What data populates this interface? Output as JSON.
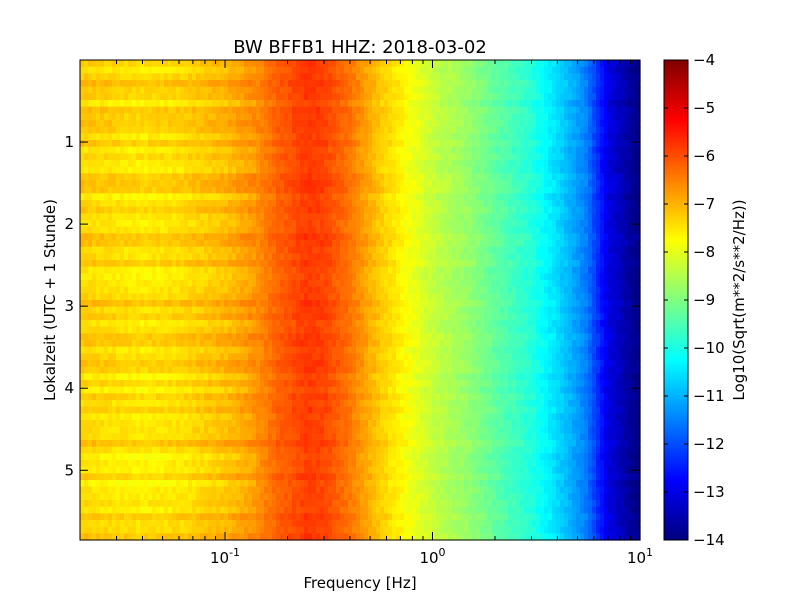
{
  "chart_data": {
    "type": "heatmap",
    "title": "BW BFFB1 HHZ: 2018-03-02",
    "xlabel": "Frequency [Hz]",
    "ylabel": "Lokalzeit (UTC + 1 Stunde)",
    "x_scale": "log",
    "xlim": [
      0.02,
      10
    ],
    "x_ticks": [
      {
        "value": 0.1,
        "base": "10",
        "exp": "-1"
      },
      {
        "value": 1,
        "base": "10",
        "exp": "0"
      },
      {
        "value": 10,
        "base": "10",
        "exp": "1"
      }
    ],
    "ylim": [
      0,
      5.85
    ],
    "y_inverted": true,
    "y_ticks": [
      1,
      2,
      3,
      4,
      5
    ],
    "y_tick_labels": [
      "1",
      "2",
      "3",
      "4",
      "5"
    ],
    "colorbar": {
      "label": "Log10(Sqrt(m**2/s**2/Hz))",
      "range": [
        -14,
        -4
      ],
      "ticks": [
        -4,
        -5,
        -6,
        -7,
        -8,
        -9,
        -10,
        -11,
        -12,
        -13,
        -14
      ],
      "tick_labels": [
        "−4",
        "−5",
        "−6",
        "−7",
        "−8",
        "−9",
        "−10",
        "−11",
        "−12",
        "−13",
        "−14"
      ],
      "colormap": "jet"
    },
    "spectrum_profile": {
      "frequency_hz": [
        0.02,
        0.04,
        0.06,
        0.1,
        0.14,
        0.18,
        0.25,
        0.3,
        0.4,
        0.55,
        0.8,
        1.0,
        1.5,
        2.0,
        3.0,
        4.0,
        5.5,
        7.0,
        10.0
      ],
      "value": [
        -7.3,
        -7.5,
        -7.4,
        -7.1,
        -6.7,
        -6.2,
        -5.8,
        -5.9,
        -6.4,
        -7.2,
        -7.9,
        -8.3,
        -8.8,
        -9.3,
        -9.9,
        -10.6,
        -11.5,
        -13.0,
        -14.0
      ]
    },
    "colors": {
      "jet_stops": [
        "#00007f",
        "#0000ff",
        "#007fff",
        "#00ffff",
        "#7fff7f",
        "#ffff00",
        "#ff7f00",
        "#ff0000",
        "#7f0000"
      ]
    }
  }
}
